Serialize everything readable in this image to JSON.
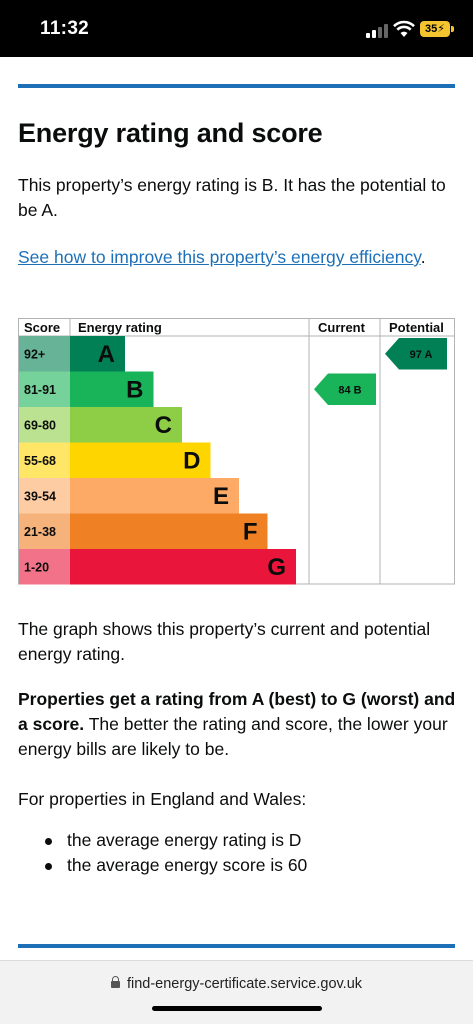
{
  "status_bar": {
    "time": "11:32",
    "battery": "35",
    "signal_bars": 2,
    "icons": [
      "signal-icon",
      "wifi-icon",
      "battery-charging-icon"
    ]
  },
  "page": {
    "title": "Energy rating and score",
    "intro": "This property’s energy rating is B. It has the potential to be A.",
    "link_text": "See how to improve this property’s energy efficiency",
    "link_suffix": ".",
    "graph_text": "The graph shows this property’s current and potential energy rating.",
    "bold_lead": "Properties get a rating from A (best) to G (worst) and a score.",
    "bold_rest": " The better the rating and score, the lower your energy bills are likely to be.",
    "avg_heading": "For properties in England and Wales:",
    "bullets": [
      "the average energy rating is D",
      "the average energy score is 60"
    ]
  },
  "colors": {
    "accent": "#1d70b8"
  },
  "chart_data": {
    "type": "table",
    "headers": {
      "score": "Score",
      "rating": "Energy rating",
      "current": "Current",
      "potential": "Potential"
    },
    "bands": [
      {
        "score": "92+",
        "letter": "A",
        "color": "#008054",
        "score_bg": "#66b398"
      },
      {
        "score": "81-91",
        "letter": "B",
        "color": "#19b459",
        "score_bg": "#75d29b"
      },
      {
        "score": "69-80",
        "letter": "C",
        "color": "#8dce46",
        "score_bg": "#bbe290"
      },
      {
        "score": "55-68",
        "letter": "D",
        "color": "#ffd500",
        "score_bg": "#ffe666"
      },
      {
        "score": "39-54",
        "letter": "E",
        "color": "#fcaa65",
        "score_bg": "#fdcca3"
      },
      {
        "score": "21-38",
        "letter": "F",
        "color": "#ef8023",
        "score_bg": "#f5b37b"
      },
      {
        "score": "1-20",
        "letter": "G",
        "color": "#e9153b",
        "score_bg": "#f27389"
      }
    ],
    "current": {
      "score": 84,
      "letter": "B",
      "label": "84  B"
    },
    "potential": {
      "score": 97,
      "letter": "A",
      "label": "97  A"
    }
  },
  "url_bar": {
    "url": "find-energy-certificate.service.gov.uk"
  }
}
